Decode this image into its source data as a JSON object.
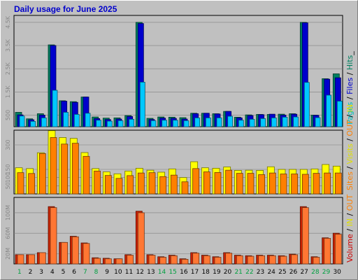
{
  "chart_data": {
    "type": "bar",
    "title": "Daily usage for June 2025",
    "categories": [
      "1",
      "2",
      "3",
      "4",
      "5",
      "6",
      "7",
      "8",
      "9",
      "10",
      "11",
      "12",
      "13",
      "14",
      "15",
      "16",
      "17",
      "18",
      "19",
      "20",
      "21",
      "22",
      "23",
      "24",
      "25",
      "26",
      "27",
      "28",
      "29",
      "30"
    ],
    "weekend_days": [
      "1",
      "7",
      "8",
      "14",
      "15",
      "21",
      "22",
      "28",
      "29"
    ],
    "panels": [
      {
        "id": "hits",
        "yticks": [
          "500",
          "1.5K",
          "2.5K",
          "3.5K",
          "4.5K"
        ],
        "tick_values": [
          500,
          1500,
          2500,
          3500,
          4500
        ],
        "ylim": [
          0,
          4800
        ],
        "legend": [
          {
            "text": "Pages",
            "color": "#00c0c0"
          },
          {
            "text": " / ",
            "color": "#000000"
          },
          {
            "text": "Files",
            "color": "#0000cc"
          },
          {
            "text": " / ",
            "color": "#000000"
          },
          {
            "text": "Hits",
            "color": "#008060"
          },
          {
            "text": "_",
            "color": "#000000"
          }
        ],
        "series": [
          {
            "name": "Hits",
            "color": "#008060",
            "values": [
              620,
              340,
              560,
              3530,
              1120,
              1080,
              1280,
              420,
              370,
              380,
              480,
              4500,
              360,
              420,
              410,
              390,
              580,
              580,
              560,
              660,
              410,
              510,
              530,
              530,
              540,
              560,
              4500,
              500,
              2070,
              2280
            ]
          },
          {
            "name": "Files",
            "color": "#0000cc",
            "values": [
              510,
              300,
              500,
              3500,
              1100,
              1050,
              1280,
              350,
              310,
              330,
              440,
              4450,
              310,
              370,
              360,
              330,
              560,
              580,
              550,
              660,
              380,
              480,
              520,
              540,
              500,
              540,
              4480,
              490,
              2050,
              2110
            ]
          },
          {
            "name": "Pages",
            "color": "#00c8ff",
            "values": [
              460,
              230,
              380,
              1570,
              620,
              530,
              580,
              280,
              240,
              260,
              320,
              1920,
              260,
              280,
              280,
              260,
              380,
              380,
              380,
              450,
              280,
              320,
              350,
              380,
              410,
              420,
              1910,
              390,
              1360,
              1100
            ]
          }
        ]
      },
      {
        "id": "visits",
        "yticks": [
          "50",
          "100",
          "150",
          "300"
        ],
        "tick_values": [
          50,
          100,
          150,
          300
        ],
        "ylim": [
          0,
          390
        ],
        "legend": [
          {
            "text": "Sites",
            "color": "#ff8000"
          },
          {
            "text": " / ",
            "color": "#000000"
          },
          {
            "text": "Visits",
            "color": "#e0e000"
          },
          {
            "text": " / ",
            "color": "#000000"
          },
          {
            "text": "OUT",
            "color": "#ff8000"
          },
          {
            "text": " / ",
            "color": "#000000"
          },
          {
            "text": "IN",
            "color": "#e0e000"
          }
        ],
        "series": [
          {
            "name": "Visits",
            "color": "#ffff00",
            "values": [
              160,
              155,
              252,
              387,
              345,
              340,
              253,
              155,
              135,
              123,
              140,
              157,
              145,
              133,
              153,
              100,
              197,
              160,
              157,
              165,
              144,
              145,
              144,
              166,
              150,
              150,
              150,
              153,
              180,
              170
            ]
          },
          {
            "name": "Sites",
            "color": "#ff8000",
            "values": [
              130,
              125,
              247,
              345,
              305,
              310,
              230,
              140,
              113,
              95,
              112,
              128,
              130,
              106,
              115,
              74,
              155,
              135,
              131,
              145,
              126,
              126,
              118,
              128,
              122,
              122,
              120,
              126,
              128,
              128
            ]
          }
        ]
      },
      {
        "id": "volume",
        "yticks": [
          "20M",
          "60M",
          "100M"
        ],
        "tick_values": [
          20,
          60,
          100
        ],
        "ylim": [
          0,
          130
        ],
        "legend": [
          {
            "text": "Volume",
            "color": "#cc0000"
          },
          {
            "text": " / ",
            "color": "#000000"
          },
          {
            "text": "IN",
            "color": "#e0e000"
          },
          {
            "text": " / ",
            "color": "#000000"
          },
          {
            "text": "OUT",
            "color": "#ff8000"
          }
        ],
        "series": [
          {
            "name": "Volume",
            "color": "#cc2200",
            "values": [
              18,
              18,
              22,
              112,
              42,
              54,
              41,
              12,
              11,
              10,
              18,
              103,
              18,
              14,
              17,
              10,
              22,
              17,
              14,
              22,
              17,
              16,
              17,
              17,
              16,
              19,
              112,
              14,
              51,
              60
            ]
          },
          {
            "name": "OUT",
            "color": "#ff7733",
            "values": [
              18,
              18,
              22,
              110,
              42,
              53,
              40,
              11,
              10,
              10,
              17,
              100,
              17,
              13,
              16,
              9,
              21,
              16,
              13,
              21,
              16,
              15,
              16,
              16,
              15,
              18,
              110,
              13,
              50,
              58
            ]
          }
        ]
      }
    ]
  }
}
